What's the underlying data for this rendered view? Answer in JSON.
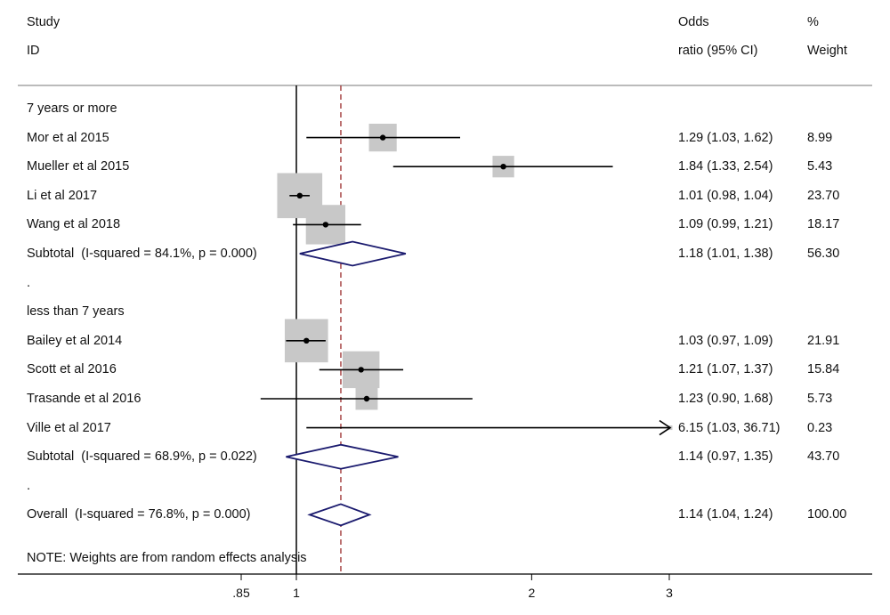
{
  "header": {
    "study_line1": "Study",
    "study_line2": "ID",
    "or_line1": "Odds",
    "or_line2": "ratio (95% CI)",
    "wt_line1": "%",
    "wt_line2": "Weight"
  },
  "note": "NOTE: Weights are from random effects analysis",
  "chart_data": {
    "type": "forest",
    "x_scale": "log",
    "null_line": 1,
    "overall_line": 1.14,
    "x_ticks": [
      {
        "value": 0.85,
        "label": ".85"
      },
      {
        "value": 1,
        "label": "1"
      },
      {
        "value": 2,
        "label": "2"
      },
      {
        "value": 3,
        "label": "3"
      }
    ],
    "rows": [
      {
        "kind": "group",
        "label": "7 years or more"
      },
      {
        "kind": "study",
        "label": "Mor et al 2015",
        "or": 1.29,
        "lo": 1.03,
        "hi": 1.62,
        "ci_text": "1.29 (1.03, 1.62)",
        "weight": "8.99"
      },
      {
        "kind": "study",
        "label": "Mueller et al 2015",
        "or": 1.84,
        "lo": 1.33,
        "hi": 2.54,
        "ci_text": "1.84 (1.33, 2.54)",
        "weight": "5.43"
      },
      {
        "kind": "study",
        "label": "Li et al 2017",
        "or": 1.01,
        "lo": 0.98,
        "hi": 1.04,
        "ci_text": "1.01 (0.98, 1.04)",
        "weight": "23.70"
      },
      {
        "kind": "study",
        "label": "Wang et al 2018",
        "or": 1.09,
        "lo": 0.99,
        "hi": 1.21,
        "ci_text": "1.09 (0.99, 1.21)",
        "weight": "18.17"
      },
      {
        "kind": "subtotal",
        "label": "Subtotal  (I-squared = 84.1%, p = 0.000)",
        "or": 1.18,
        "lo": 1.01,
        "hi": 1.38,
        "ci_text": "1.18 (1.01, 1.38)",
        "weight": "56.30"
      },
      {
        "kind": "spacer",
        "label": "."
      },
      {
        "kind": "group",
        "label": "less than 7 years"
      },
      {
        "kind": "study",
        "label": "Bailey et al 2014",
        "or": 1.03,
        "lo": 0.97,
        "hi": 1.09,
        "ci_text": "1.03 (0.97, 1.09)",
        "weight": "21.91"
      },
      {
        "kind": "study",
        "label": "Scott et al 2016",
        "or": 1.21,
        "lo": 1.07,
        "hi": 1.37,
        "ci_text": "1.21 (1.07, 1.37)",
        "weight": "15.84"
      },
      {
        "kind": "study",
        "label": "Trasande et al 2016",
        "or": 1.23,
        "lo": 0.9,
        "hi": 1.68,
        "ci_text": "1.23 (0.90, 1.68)",
        "weight": "5.73"
      },
      {
        "kind": "study",
        "label": "Ville et al 2017",
        "or": 6.15,
        "lo": 1.03,
        "hi": 36.71,
        "ci_text": "6.15 (1.03, 36.71)",
        "weight": "0.23"
      },
      {
        "kind": "subtotal",
        "label": "Subtotal  (I-squared = 68.9%, p = 0.022)",
        "or": 1.14,
        "lo": 0.97,
        "hi": 1.35,
        "ci_text": "1.14 (0.97, 1.35)",
        "weight": "43.70"
      },
      {
        "kind": "spacer",
        "label": "."
      },
      {
        "kind": "overall",
        "label": "Overall  (I-squared = 76.8%, p = 0.000)",
        "or": 1.14,
        "lo": 1.04,
        "hi": 1.24,
        "ci_text": "1.14 (1.04, 1.24)",
        "weight": "100.00"
      }
    ]
  },
  "colors": {
    "diamond": "#1a1a6e",
    "overall_line": "#9b2a2a",
    "box": "#c8c8c8",
    "ink": "#000000"
  }
}
